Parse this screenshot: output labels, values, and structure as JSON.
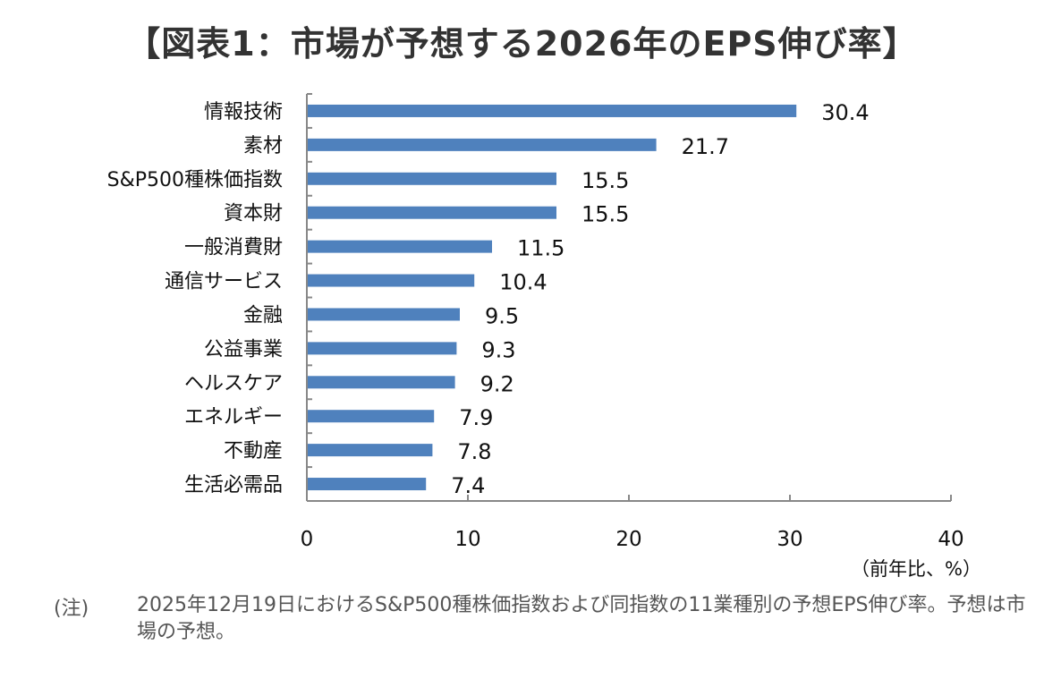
{
  "chart_data": {
    "type": "bar",
    "orientation": "horizontal",
    "title": "【図表1：市場が予想する2026年のEPS伸び率】",
    "categories": [
      "情報技術",
      "素材",
      "S&P500種株価指数",
      "資本財",
      "一般消費財",
      "通信サービス",
      "金融",
      "公益事業",
      "ヘルスケア",
      "エネルギー",
      "不動産",
      "生活必需品"
    ],
    "values": [
      30.4,
      21.7,
      15.5,
      15.5,
      11.5,
      10.4,
      9.5,
      9.3,
      9.2,
      7.9,
      7.8,
      7.4
    ],
    "value_labels": [
      "30.4",
      "21.7",
      "15.5",
      "15.5",
      "11.5",
      "10.4",
      "9.5",
      "9.3",
      "9.2",
      "7.9",
      "7.8",
      "7.4"
    ],
    "xlim": [
      0,
      40
    ],
    "xticks": [
      0,
      10,
      20,
      30,
      40
    ],
    "xtick_labels": [
      "0",
      "10",
      "20",
      "30",
      "40"
    ],
    "xlabel": "（前年比、%）",
    "ylabel": "",
    "grid": false,
    "bar_color": "#4f81bd"
  },
  "note": {
    "label": "(注)",
    "text": "2025年12月19日におけるS&P500種株価指数および同指数の11業種別の予想EPS伸び率。予想は市場の予想。"
  }
}
